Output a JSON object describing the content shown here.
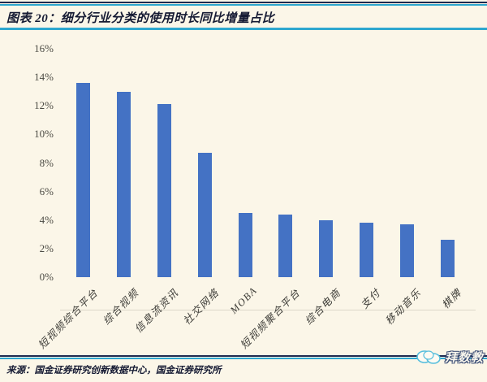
{
  "header": {
    "title": "图表 20：细分行业分类的使用时长同比增量占比"
  },
  "footer": {
    "source": "来源：国金证券研究创新数据中心，国金证券研究所",
    "watermark": "拜数教"
  },
  "colors": {
    "background": "#FBF6E8",
    "bar": "#4472C4",
    "accent_cyan": "#2EA7CF",
    "accent_navy": "#1F2A50",
    "axis_line": "#DCD8CA",
    "tick_text": "#4C4B44"
  },
  "chart_data": {
    "type": "bar",
    "title": "细分行业分类的使用时长同比增量占比",
    "categories": [
      "短视频综合平台",
      "综合视频",
      "信息流资讯",
      "社交网络",
      "MOBA",
      "短视频聚合平台",
      "综合电商",
      "支付",
      "移动音乐",
      "棋牌"
    ],
    "values": [
      13.6,
      13.0,
      12.1,
      8.7,
      4.5,
      4.4,
      4.0,
      3.8,
      3.7,
      2.6
    ],
    "unit": "%",
    "xlabel": "",
    "ylabel": "",
    "ylim": [
      0,
      16
    ],
    "y_ticks": [
      "0%",
      "2%",
      "4%",
      "6%",
      "8%",
      "10%",
      "12%",
      "14%",
      "16%"
    ],
    "y_tick_values": [
      0,
      2,
      4,
      6,
      8,
      10,
      12,
      14,
      16
    ],
    "grid": false,
    "legend": false,
    "bar_color": "#4472C4",
    "x_label_rotation_deg": 45
  }
}
